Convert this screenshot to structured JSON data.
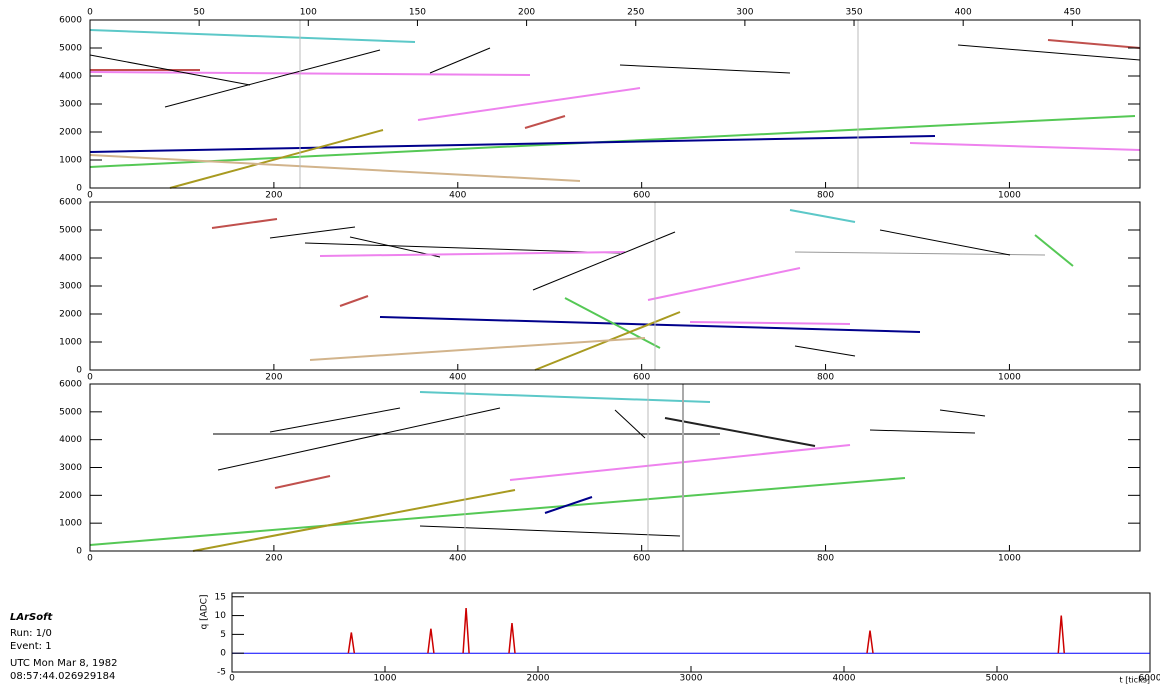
{
  "top_axis": {
    "xlim": [
      0,
      481
    ],
    "xticks": [
      0,
      50,
      100,
      150,
      200,
      250,
      300,
      350,
      400,
      450
    ]
  },
  "panels": [
    {
      "xlim": [
        0,
        1142
      ],
      "xticks": [
        0,
        200,
        400,
        600,
        800,
        1000
      ],
      "ylim": [
        0,
        6000
      ],
      "yticks": [
        0,
        1000,
        2000,
        3000,
        4000,
        5000,
        6000
      ]
    },
    {
      "xlim": [
        0,
        1142
      ],
      "xticks": [
        0,
        200,
        400,
        600,
        800,
        1000
      ],
      "ylim": [
        0,
        6000
      ],
      "yticks": [
        0,
        1000,
        2000,
        3000,
        4000,
        5000,
        6000
      ]
    },
    {
      "xlim": [
        0,
        1142
      ],
      "xticks": [
        0,
        200,
        400,
        600,
        800,
        1000
      ],
      "ylim": [
        0,
        6000
      ],
      "yticks": [
        0,
        1000,
        2000,
        3000,
        4000,
        5000,
        6000
      ]
    }
  ],
  "waveform": {
    "xlim": [
      0,
      6000
    ],
    "xticks": [
      0,
      1000,
      2000,
      3000,
      4000,
      5000,
      6000
    ],
    "ylim": [
      -5,
      16
    ],
    "yticks": [
      -5,
      0,
      5,
      10,
      15
    ],
    "ylabel": "q [ADC]",
    "xlabel": "t [ticks]",
    "peak_t": [
      780,
      1300,
      1530,
      1830,
      4170,
      5420
    ],
    "peak_q": [
      5.5,
      6.5,
      12,
      8,
      6,
      10
    ]
  },
  "info": {
    "title": "LArSoft",
    "run": "Run:   1/0",
    "event": "Event: 1",
    "date": "UTC Mon Mar 8, 1982",
    "time": "08:57:44.026929184"
  }
}
